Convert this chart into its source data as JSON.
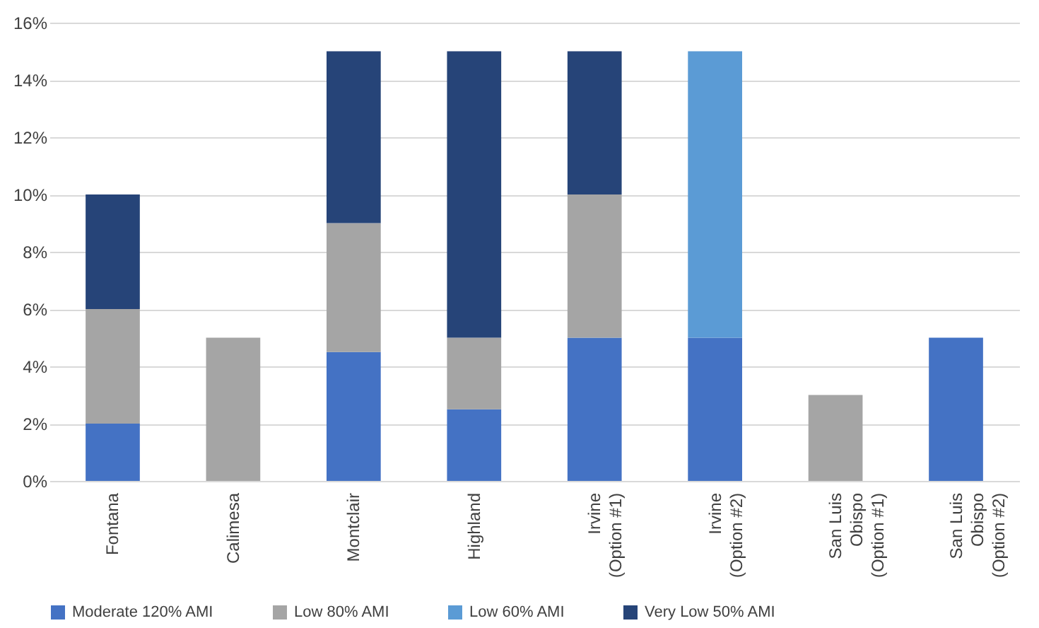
{
  "chart_data": {
    "type": "bar",
    "stacked": true,
    "categories": [
      "Fontana",
      "Calimesa",
      "Montclair",
      "Highland",
      "Irvine (Option #1)",
      "Irvine (Option #2)",
      "San Luis Obispo (Option #1)",
      "San Luis Obispo (Option #2)"
    ],
    "series": [
      {
        "name": "Moderate 120% AMI",
        "color": "#4472c4",
        "values": [
          2,
          null,
          4.5,
          2.5,
          5,
          5,
          null,
          5
        ]
      },
      {
        "name": "Low 80% AMI",
        "color": "#a5a5a5",
        "values": [
          4,
          5,
          4.5,
          2.5,
          5,
          null,
          3,
          null
        ]
      },
      {
        "name": "Low 60% AMI",
        "color": "#5b9bd5",
        "values": [
          null,
          null,
          null,
          null,
          null,
          10,
          null,
          null
        ]
      },
      {
        "name": "Very Low 50% AMI",
        "color": "#264478",
        "values": [
          4,
          null,
          6,
          10,
          5,
          null,
          null,
          null
        ]
      }
    ],
    "ylim": [
      0,
      16
    ],
    "yticks": [
      {
        "value": 0,
        "label": "0%"
      },
      {
        "value": 2,
        "label": "2%"
      },
      {
        "value": 4,
        "label": "4%"
      },
      {
        "value": 6,
        "label": "6%"
      },
      {
        "value": 8,
        "label": "8%"
      },
      {
        "value": 10,
        "label": "10%"
      },
      {
        "value": 12,
        "label": "12%"
      },
      {
        "value": 14,
        "label": "14%"
      },
      {
        "value": 16,
        "label": "16%"
      }
    ],
    "grid": "y",
    "legend": "bottom"
  }
}
